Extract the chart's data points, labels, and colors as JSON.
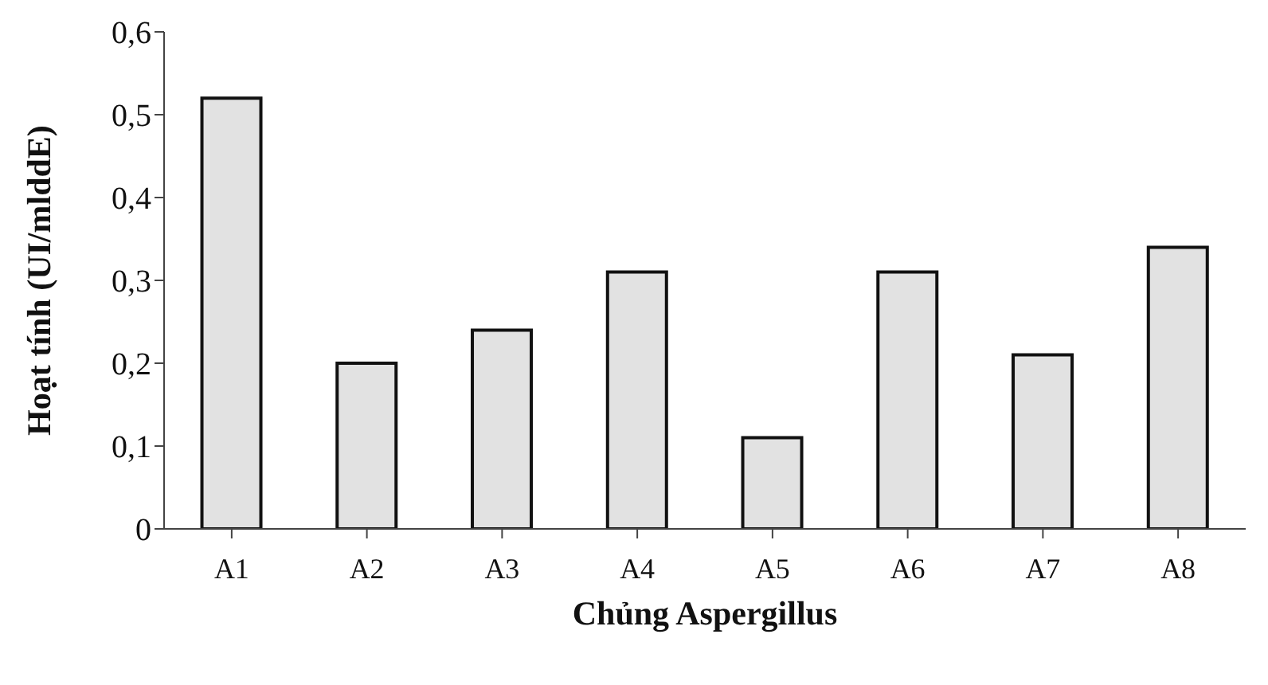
{
  "chart_data": {
    "type": "bar",
    "xlabel": "Chủng Aspergillus",
    "ylabel": "Hoạt tính (UI/mlddE)",
    "categories": [
      "A1",
      "A2",
      "A3",
      "A4",
      "A5",
      "A6",
      "A7",
      "A8"
    ],
    "values": [
      0.52,
      0.2,
      0.24,
      0.31,
      0.11,
      0.31,
      0.21,
      0.34
    ],
    "color": "#e2e2e2",
    "ylim": [
      0,
      0.6
    ],
    "yticks": [
      0,
      {
        "value": 0.1,
        "label": "0,1"
      },
      {
        "value": 0.2,
        "label": "0,2"
      },
      {
        "value": 0.3,
        "label": "0,3"
      },
      {
        "value": 0.4,
        "label": "0,4"
      },
      {
        "value": 0.5,
        "label": "0,5"
      },
      {
        "value": 0.6,
        "label": "0,6"
      }
    ],
    "grid": false,
    "legend": false
  }
}
